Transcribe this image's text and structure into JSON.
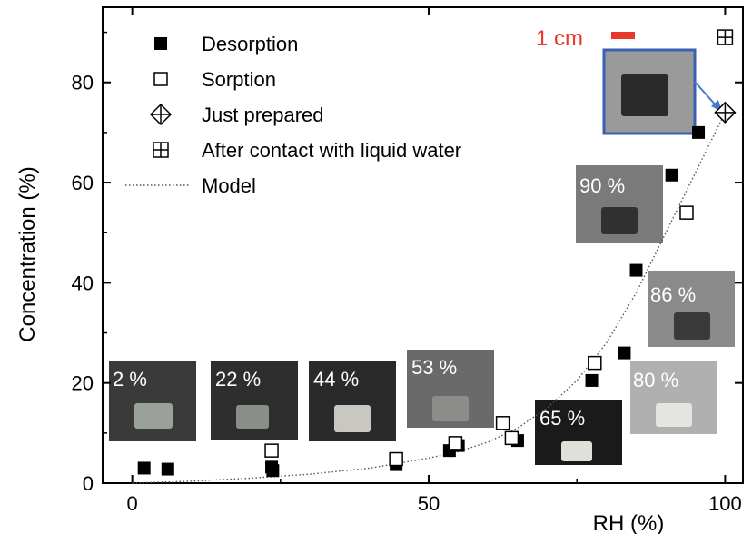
{
  "chart_data": {
    "type": "scatter",
    "xlabel": "RH (%)",
    "ylabel": "Concentration (%)",
    "xlim": [
      -5,
      103
    ],
    "ylim": [
      0,
      95
    ],
    "xticks": [
      "0",
      "50",
      "100"
    ],
    "xtick_values": [
      0,
      50,
      100
    ],
    "yticks": [
      "0",
      "20",
      "40",
      "60",
      "80"
    ],
    "ytick_values": [
      0,
      20,
      40,
      60,
      80
    ],
    "series": [
      {
        "name": "Desorption",
        "marker": "filled-square",
        "x": [
          2,
          6,
          23.5,
          23.7,
          44.5,
          53.5,
          55,
          65,
          77.5,
          83,
          85,
          91,
          95.5
        ],
        "y": [
          3,
          2.8,
          3.2,
          2.5,
          3.7,
          6.5,
          7.5,
          8.5,
          20.5,
          26,
          42.5,
          61.5,
          70
        ]
      },
      {
        "name": "Sorption",
        "marker": "open-square",
        "x": [
          23.5,
          44.5,
          54.5,
          62.5,
          64,
          78,
          93.5
        ],
        "y": [
          6.5,
          4.8,
          8,
          12,
          9,
          24,
          54
        ]
      },
      {
        "name": "Just prepared",
        "marker": "diamond-cross",
        "x": [
          100
        ],
        "y": [
          74
        ]
      },
      {
        "name": "After contact with liquid water",
        "marker": "square-cross",
        "x": [
          100
        ],
        "y": [
          89
        ]
      },
      {
        "name": "Model",
        "marker": "dotted-line",
        "x": [
          0,
          10,
          20,
          30,
          40,
          50,
          55,
          60,
          65,
          70,
          75,
          80,
          85,
          90,
          95,
          100
        ],
        "y": [
          0,
          0.4,
          1,
          1.8,
          3,
          5,
          6.3,
          8.2,
          11,
          15,
          20.5,
          28,
          38,
          50,
          62,
          74
        ]
      }
    ],
    "legend_position": "top-left",
    "grid": false
  },
  "scale_bar": {
    "label": "1 cm",
    "color": "#e8372b"
  },
  "photos": [
    {
      "label": "2 %",
      "bg": "#3a3a3a",
      "sample": "#9aa09a"
    },
    {
      "label": "22 %",
      "bg": "#2e2e2e",
      "sample": "#8a8e88"
    },
    {
      "label": "44 %",
      "bg": "#2a2a2a",
      "sample": "#c8c8c0"
    },
    {
      "label": "53 %",
      "bg": "#6a6a6a",
      "sample": "#8c8c88"
    },
    {
      "label": "65 %",
      "bg": "#1a1a1a",
      "sample": "#e0e0da"
    },
    {
      "label": "80 %",
      "bg": "#b0b0b0",
      "sample": "#e4e4e0"
    },
    {
      "label": "86 %",
      "bg": "#8a8a8a",
      "sample": "#3a3a3a"
    },
    {
      "label": "90 %",
      "bg": "#7a7a7a",
      "sample": "#303030"
    },
    {
      "label": "",
      "bg": "#9a9a9a",
      "sample": "#2a2a2a",
      "frame": "#3a5fb5"
    }
  ],
  "colors": {
    "axis": "#000000",
    "model_line": "#555555",
    "arrow": "#4a78c8"
  }
}
